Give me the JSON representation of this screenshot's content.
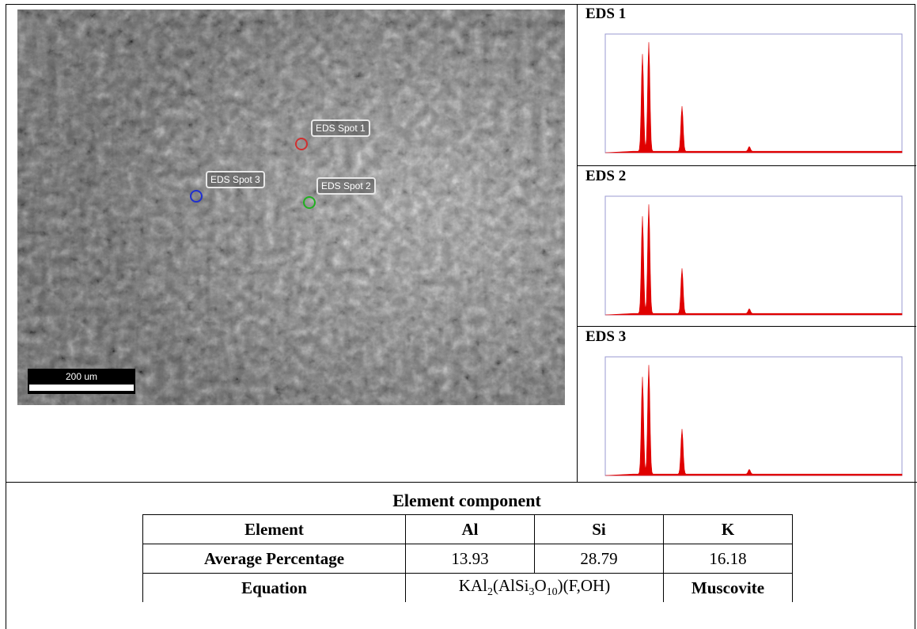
{
  "sem_image": {
    "spots": [
      "EDS Spot 1",
      "EDS Spot 2",
      "EDS Spot 3"
    ],
    "scale_bar": "200 um"
  },
  "spectra": [
    "EDS 1",
    "EDS 2",
    "EDS 3"
  ],
  "table": {
    "caption": "Element component",
    "header": [
      "Element",
      "Al",
      "Si",
      "K"
    ],
    "average_row": [
      "Average Percentage",
      "13.93",
      "28.79",
      "16.18"
    ],
    "equation_row": {
      "label": "Equation",
      "formula": [
        "KAl",
        "2",
        "(AlSi",
        "3",
        "O",
        "10",
        ")(F,OH)"
      ],
      "mineral": "Muscovite"
    }
  }
}
